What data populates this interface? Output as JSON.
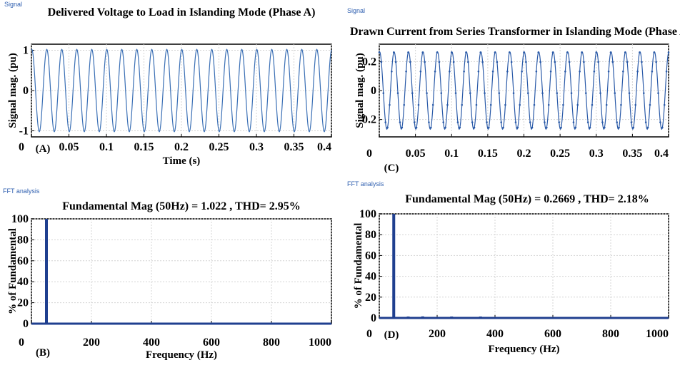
{
  "chart_data": [
    {
      "type": "line",
      "panel_label": "(A)",
      "window_tag": "Signal",
      "title": "Delivered Voltage to Load in Islanding Mode (Phase A)",
      "xlabel": "Time (s)",
      "ylabel": "Signal mag. (pu)",
      "xlim": [
        0,
        0.4
      ],
      "ylim": [
        -1.15,
        1.15
      ],
      "x_ticks": [
        0,
        0.05,
        0.1,
        0.15,
        0.2,
        0.25,
        0.3,
        0.35,
        0.4
      ],
      "x_tick_labels": [
        "0",
        "0.05",
        "0.1",
        "0.15",
        "0.2",
        "0.25",
        "0.3",
        "0.35",
        "0.4"
      ],
      "y_ticks": [
        -1,
        0,
        1
      ],
      "y_tick_labels": [
        "-1",
        "0",
        "1"
      ],
      "grid": true,
      "series": [
        {
          "signal": "sinusoid",
          "frequency_hz": 50,
          "amplitude": 1.022,
          "color": "#3a6fb5"
        }
      ]
    },
    {
      "type": "line",
      "panel_label": "(C)",
      "window_tag": "Signal",
      "title": "Drawn Current from Series Transformer in Islanding Mode (Phase A)",
      "xlabel": "",
      "ylabel": "Signal mag. (pu)",
      "xlim": [
        0,
        0.4
      ],
      "ylim": [
        -0.32,
        0.32
      ],
      "x_ticks": [
        0,
        0.05,
        0.1,
        0.15,
        0.2,
        0.25,
        0.3,
        0.35,
        0.4
      ],
      "x_tick_labels": [
        "0",
        "0.05",
        "0.1",
        "0.15",
        "0.2",
        "0.25",
        "0.3",
        "0.35",
        "0.4"
      ],
      "y_ticks": [
        -0.2,
        0,
        0.2
      ],
      "y_tick_labels": [
        "-0.2",
        "0",
        "0.2"
      ],
      "grid": true,
      "series": [
        {
          "signal": "sinusoid",
          "frequency_hz": 50,
          "amplitude": 0.2669,
          "color": "#2a5aa8",
          "markers": true
        }
      ]
    },
    {
      "type": "bar",
      "panel_label": "(B)",
      "window_tag": "FFT analysis",
      "title": "Fundamental Mag (50Hz) = 1.022 , THD= 2.95%",
      "xlabel": "Frequency (Hz)",
      "ylabel": "% of Fundamental",
      "xlim": [
        0,
        1000
      ],
      "ylim": [
        0,
        100
      ],
      "x_ticks": [
        0,
        200,
        400,
        600,
        800,
        1000
      ],
      "x_tick_labels": [
        "0",
        "200",
        "400",
        "600",
        "800",
        "1000"
      ],
      "y_ticks": [
        0,
        20,
        40,
        60,
        80,
        100
      ],
      "y_tick_labels": [
        "0",
        "20",
        "40",
        "60",
        "80",
        "100"
      ],
      "grid": true,
      "color": "#1f3f8f",
      "bars": [
        {
          "x": 50,
          "y": 100
        }
      ]
    },
    {
      "type": "bar",
      "panel_label": "(D)",
      "window_tag": "FFT analysis",
      "title": "Fundamental Mag (50Hz) = 0.2669 , THD= 2.18%",
      "xlabel": "Frequency (Hz)",
      "ylabel": "% of Fundamental",
      "xlim": [
        0,
        1000
      ],
      "ylim": [
        0,
        100
      ],
      "x_ticks": [
        0,
        200,
        400,
        600,
        800,
        1000
      ],
      "x_tick_labels": [
        "0",
        "200",
        "400",
        "600",
        "800",
        "1000"
      ],
      "y_ticks": [
        0,
        20,
        40,
        60,
        80,
        100
      ],
      "y_tick_labels": [
        "0",
        "20",
        "40",
        "60",
        "80",
        "100"
      ],
      "grid": true,
      "color": "#1f3f8f",
      "bars": [
        {
          "x": 50,
          "y": 100
        },
        {
          "x": 100,
          "y": 1.2
        },
        {
          "x": 150,
          "y": 1.5
        },
        {
          "x": 250,
          "y": 1.0
        },
        {
          "x": 350,
          "y": 1.0
        }
      ]
    }
  ]
}
